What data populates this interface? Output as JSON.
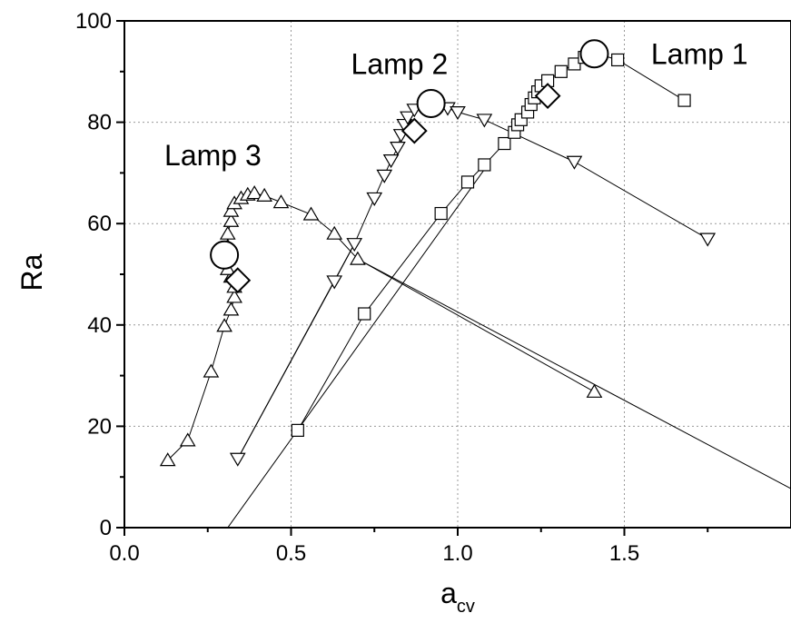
{
  "chart_data": {
    "type": "scatter",
    "xlabel": "a",
    "xlabel_subscript": "cv",
    "ylabel": "Ra",
    "xlim": [
      0,
      2.0
    ],
    "ylim": [
      0,
      100
    ],
    "xticks": [
      0.0,
      0.5,
      1.0,
      1.5
    ],
    "xtick_labels": [
      "0.0",
      "0.5",
      "1.0",
      "1.5"
    ],
    "yticks": [
      0,
      20,
      40,
      60,
      80,
      100
    ],
    "ytick_labels": [
      "0",
      "20",
      "40",
      "60",
      "80",
      "100"
    ],
    "grid": true,
    "series": [
      {
        "marker": "square",
        "points": [
          [
            0.52,
            19.2
          ],
          [
            0.72,
            42.2
          ],
          [
            0.95,
            62.0
          ],
          [
            1.03,
            68.2
          ],
          [
            1.08,
            71.6
          ],
          [
            1.14,
            75.8
          ],
          [
            1.17,
            78.0
          ],
          [
            1.18,
            79.5
          ],
          [
            1.19,
            80.5
          ],
          [
            1.21,
            82.0
          ],
          [
            1.22,
            83.5
          ],
          [
            1.23,
            84.8
          ],
          [
            1.24,
            86.0
          ],
          [
            1.25,
            87.2
          ],
          [
            1.27,
            88.2
          ],
          [
            1.31,
            90.0
          ],
          [
            1.35,
            91.5
          ],
          [
            1.38,
            92.8
          ],
          [
            1.42,
            93.5
          ],
          [
            1.48,
            92.3
          ],
          [
            1.68,
            84.3
          ]
        ],
        "fit_line": [
          [
            0.31,
            0
          ],
          [
            1.09,
            71.6
          ]
        ]
      },
      {
        "marker": "triangle-down",
        "points": [
          [
            0.34,
            13.6
          ],
          [
            0.63,
            48.6
          ],
          [
            0.69,
            56.0
          ],
          [
            0.75,
            65.0
          ],
          [
            0.78,
            69.5
          ],
          [
            0.8,
            72.5
          ],
          [
            0.82,
            75.0
          ],
          [
            0.83,
            77.5
          ],
          [
            0.84,
            79.5
          ],
          [
            0.85,
            81.0
          ],
          [
            0.87,
            82.5
          ],
          [
            0.9,
            83.0
          ],
          [
            0.94,
            83.3
          ],
          [
            0.97,
            82.8
          ],
          [
            1.0,
            82.0
          ],
          [
            1.08,
            80.5
          ],
          [
            1.35,
            72.2
          ],
          [
            1.75,
            57.0
          ]
        ],
        "fit_line": [
          [
            0.34,
            13.6
          ],
          [
            0.69,
            56.0
          ]
        ]
      },
      {
        "marker": "triangle-up",
        "points": [
          [
            0.13,
            13.3
          ],
          [
            0.19,
            17.2
          ],
          [
            0.26,
            30.8
          ],
          [
            0.3,
            39.8
          ],
          [
            0.32,
            43.0
          ],
          [
            0.33,
            45.5
          ],
          [
            0.33,
            47.5
          ],
          [
            0.32,
            49.5
          ],
          [
            0.31,
            51.0
          ],
          [
            0.31,
            53.0
          ],
          [
            0.31,
            55.5
          ],
          [
            0.31,
            58.0
          ],
          [
            0.32,
            60.5
          ],
          [
            0.32,
            62.5
          ],
          [
            0.33,
            64.0
          ],
          [
            0.35,
            65.0
          ],
          [
            0.37,
            65.7
          ],
          [
            0.39,
            66.0
          ],
          [
            0.42,
            65.5
          ],
          [
            0.47,
            64.2
          ],
          [
            0.56,
            61.8
          ],
          [
            0.63,
            58.0
          ],
          [
            0.7,
            53.0
          ],
          [
            1.41,
            26.8
          ]
        ],
        "fit_line": [
          [
            0.7,
            53.0
          ],
          [
            2.0,
            7.7
          ]
        ]
      }
    ],
    "highlights": [
      {
        "marker": "circle",
        "points": [
          [
            0.3,
            53.8
          ],
          [
            0.92,
            83.7
          ],
          [
            1.41,
            93.5
          ]
        ]
      },
      {
        "marker": "diamond",
        "points": [
          [
            0.34,
            48.8
          ],
          [
            0.87,
            78.3
          ],
          [
            1.27,
            85.2
          ]
        ]
      }
    ],
    "annotations": [
      {
        "text": "Lamp 1",
        "x": 1.58,
        "y": 91.5
      },
      {
        "text": "Lamp 2",
        "x": 0.68,
        "y": 89.5
      },
      {
        "text": "Lamp 3",
        "x": 0.12,
        "y": 71.5
      }
    ]
  }
}
